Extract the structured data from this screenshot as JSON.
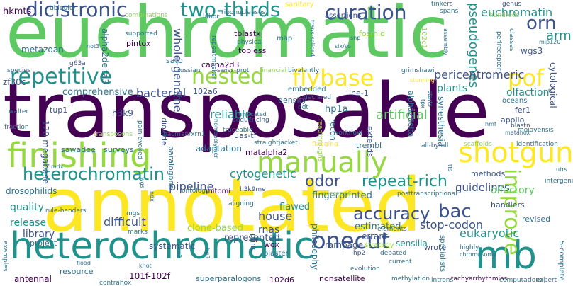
{
  "words": {
    "euchromatic": "euchromatic",
    "transposable": "transposable",
    "annotated": "annotated",
    "heterochromatic": "heterochromatic",
    "finishing": "finishing",
    "manually": "manually",
    "shotgun": "shotgun",
    "mb": "mb",
    "repetitive": "repetitive",
    "nested": "nested",
    "flybase": "flybase",
    "dicistronic": "dicistronic",
    "two_thirds": "two-thirds",
    "curation": "curation",
    "heterochromatin": "heterochromatin",
    "onecut": "onecut",
    "accuracy": "accuracy",
    "pof": "pof",
    "orn": "orn",
    "improve": "improve",
    "bac": "bac",
    "repeat_rich": "repeat-rich",
    "odor": "odor",
    "pseudogenes": "pseudogenes",
    "cytogenetic": "cytogenetic",
    "arm": "arm",
    "eukaryotic": "eukaryotic",
    "hkmts": "hkmts",
    "euchromatin": "euchromatin",
    "whole_genome": "whole-genome",
    "pericentromeric": "pericentromeric",
    "artificial": "artificial",
    "reliable": "reliable",
    "bacterial": "bacterial",
    "comprehensive": "comprehensive",
    "pipeline": "pipeline",
    "difficult": "difficult",
    "quality": "quality",
    "release": "release",
    "library": "library",
    "house": "house",
    "rnas": "rnas",
    "stop_codon": "stop-codon",
    "guidelines": "guidelines",
    "olfactory": "olfactory",
    "estimated": "estimated",
    "fingerprinted": "fingerprinted",
    "flawed": "flawed",
    "errant": "errant",
    "sensilla": "sensilla",
    "represented": "represented",
    "clone_based": "clone-based",
    "systematic": "systematic",
    "rampage": "rampage",
    "philosophy": "philosophy",
    "antennal": "antennal",
    "resource": "resource",
    "f101": "101f-102f",
    "superparalogons": "superparalogons",
    "d102": "102d6",
    "nonsatellite": "nonsatellite",
    "drosophilids": "drosophilids",
    "metazoan": "metazoan",
    "alpha2delta3": "alpha2delta3",
    "cacna2d3": "cacna2d3",
    "tblastx": "tblastx",
    "pintox": "pintox",
    "topless": "topless",
    "satb": "satb",
    "hp1a": "hp1a",
    "plants": "plants",
    "olfaction": "olfaction",
    "synesthesia": "synesthesia",
    "alpha2delta": "alpha2delta",
    "wgs3": "wgs3",
    "cytological": "cytological",
    "fosmid": "fosmid",
    "zf30c": "zf30c",
    "tup1": "tup1",
    "h3k9": "h3k9",
    "megabase": "120-megabase",
    "dioxide": "dioxide",
    "paralogons": "paralogons",
    "adaptation": "adaptation",
    "matalpha2": "matalpha2",
    "uas_tf": "uas-tf",
    "mitomi": "mitomi",
    "sawadee": "sawadee",
    "surveys": "surveys",
    "wox": "wox",
    "plinc": "plinc",
    "blaster": "blaster",
    "recon": "recon",
    "ine1": "ine-1",
    "extends": "extends",
    "methods": "methods",
    "handlers": "handlers",
    "revised": "revised",
    "tremblr": "trembl",
    "apollo": "apollo",
    "fer1": "fer1",
    "density": "density",
    "embedded": "embedded",
    "c102a6": "102a6",
    "project": "project",
    "contrahox": "contrahox",
    "wrote": "wrote",
    "specialists": "specialists",
    "strategy": "strategy",
    "sanitary": "sanitary",
    "assertions": "assertions",
    "tinkers": "tinkers",
    "spans": "spans",
    "genus": "genus",
    "hundreds": "hundreds",
    "c102c1": "102c1",
    "map": "map",
    "ribonucleases": "ribonucleases",
    "ubiquity": "ubiquity",
    "combinations": "combinations",
    "labor": "labor",
    "supported": "supported",
    "physical": "physical",
    "repeatmasker": "repeatmasker",
    "russian": "russian",
    "swiss_prot": "swiss-prot",
    "financial": "financial",
    "bivalently": "bivalently",
    "grimshawi": "grimshawi",
    "species": "species",
    "walter": "walter",
    "fraction": "fraction",
    "transposons": "transposons",
    "pain_evoked": "pain-evoked",
    "traceable": "traceable",
    "declared": "declared",
    "ddt": "ddt",
    "workflow": "workflow",
    "readthroughs": "readthroughs",
    "straightjacket": "straightjacket",
    "flagging": "flagging",
    "all_by_all": "all-by-all",
    "scaffolds": "scaffolds",
    "identification": "identification",
    "mojavensis": "mojavensis",
    "blastn": "blastn",
    "metahox": "metahox",
    "oceans": "oceans",
    "intergenic": "intergenic",
    "ontology": "ontology",
    "aligning": "aligning",
    "h3k9me": "h3k9me",
    "reference": "reference",
    "posttranscriptional": "posttranscriptional",
    "rule_benders": "rule-benders",
    "mgs": "mgs",
    "marks": "marks",
    "debated": "debated",
    "elements": "elements",
    "hp2": "hp2",
    "highly": "highly",
    "chromosome": "chromosome",
    "flood": "flood",
    "evolution": "evolution",
    "current": "current",
    "methylation": "methylation",
    "introns": "introns",
    "tachyarrhythmias": "tachyarrhythmias",
    "computational": "computational",
    "expert": "expert",
    "complete": "5-complete",
    "examples": "examples",
    "knot": "knot",
    "mip120": "mip120",
    "classes": "classes",
    "perireceptor": "perireceptor",
    "assembly": "assembly",
    "not3": "not3",
    "six_so": "six/so",
    "snp": "snp",
    "trans_spliced": "trans-spliced",
    "g63a": "g63a",
    "pacman": "pacman/xrn1",
    "unlocated": "unlocated",
    "sequencing": "sequencing",
    "utrs": "utrs",
    "tfs": "tfs",
    "mdx": "mdx",
    "ndx": "ndx",
    "wgs": "wgs",
    "homopolymer": "homopolymer",
    "hmf": "hmf",
    "bg3": "bg3",
    "co2": "co2",
    "starts": "starts",
    "tpx": "tpx",
    "stunning": "stunning"
  }
}
